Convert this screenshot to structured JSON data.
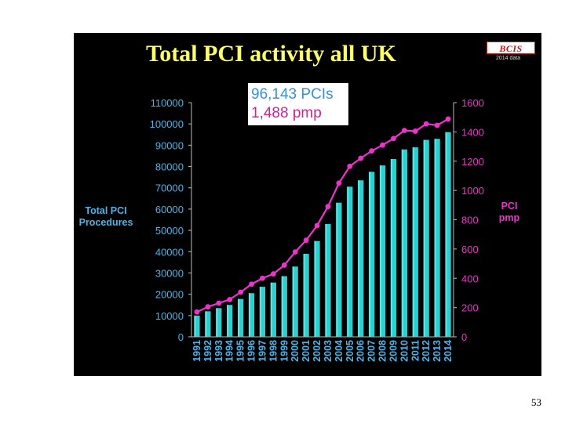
{
  "slide": {
    "number": "53"
  },
  "logo": {
    "text": "BCIS",
    "subtitle": "2014 data"
  },
  "colors": {
    "background": "#000000",
    "title": "#ffff66",
    "bars": "#2ad0d0",
    "line": "#ee33cc",
    "left_axis_text": "#4fb3e8",
    "right_axis_text": "#ee33cc"
  },
  "chart_data": {
    "type": "bar",
    "title": "Total PCI activity all UK",
    "annotation": {
      "pcis": "96,143 PCIs",
      "pmp": "1,488 pmp"
    },
    "categories": [
      "1991",
      "1992",
      "1993",
      "1994",
      "1995",
      "1996",
      "1997",
      "1998",
      "1999",
      "2000",
      "2001",
      "2002",
      "2003",
      "2004",
      "2005",
      "2006",
      "2007",
      "2008",
      "2009",
      "2010",
      "2011",
      "2012",
      "2013",
      "2014"
    ],
    "series": [
      {
        "name": "Total PCI Procedures",
        "type": "bar",
        "axis": "left",
        "values": [
          10000,
          12000,
          13500,
          15000,
          17800,
          20500,
          23500,
          25500,
          28500,
          33000,
          39000,
          45000,
          53000,
          63000,
          70500,
          73500,
          77500,
          80500,
          83500,
          88000,
          89000,
          92500,
          93000,
          96143
        ]
      },
      {
        "name": "PCI pmp",
        "type": "line",
        "axis": "right",
        "values": [
          170,
          205,
          230,
          255,
          305,
          360,
          400,
          430,
          490,
          580,
          660,
          760,
          890,
          1050,
          1165,
          1220,
          1270,
          1310,
          1355,
          1410,
          1405,
          1455,
          1445,
          1488
        ]
      }
    ],
    "ylabel_left": "Total PCI Procedures",
    "ylabel_right": "PCI pmp",
    "ylim_left": [
      0,
      110000
    ],
    "ylim_right": [
      0,
      1600
    ],
    "yticks_left": [
      "0",
      "10000",
      "20000",
      "30000",
      "40000",
      "50000",
      "60000",
      "70000",
      "80000",
      "90000",
      "100000",
      "110000"
    ],
    "yticks_right": [
      "0",
      "200",
      "400",
      "600",
      "800",
      "1000",
      "1200",
      "1400",
      "1600"
    ],
    "grid": false
  }
}
